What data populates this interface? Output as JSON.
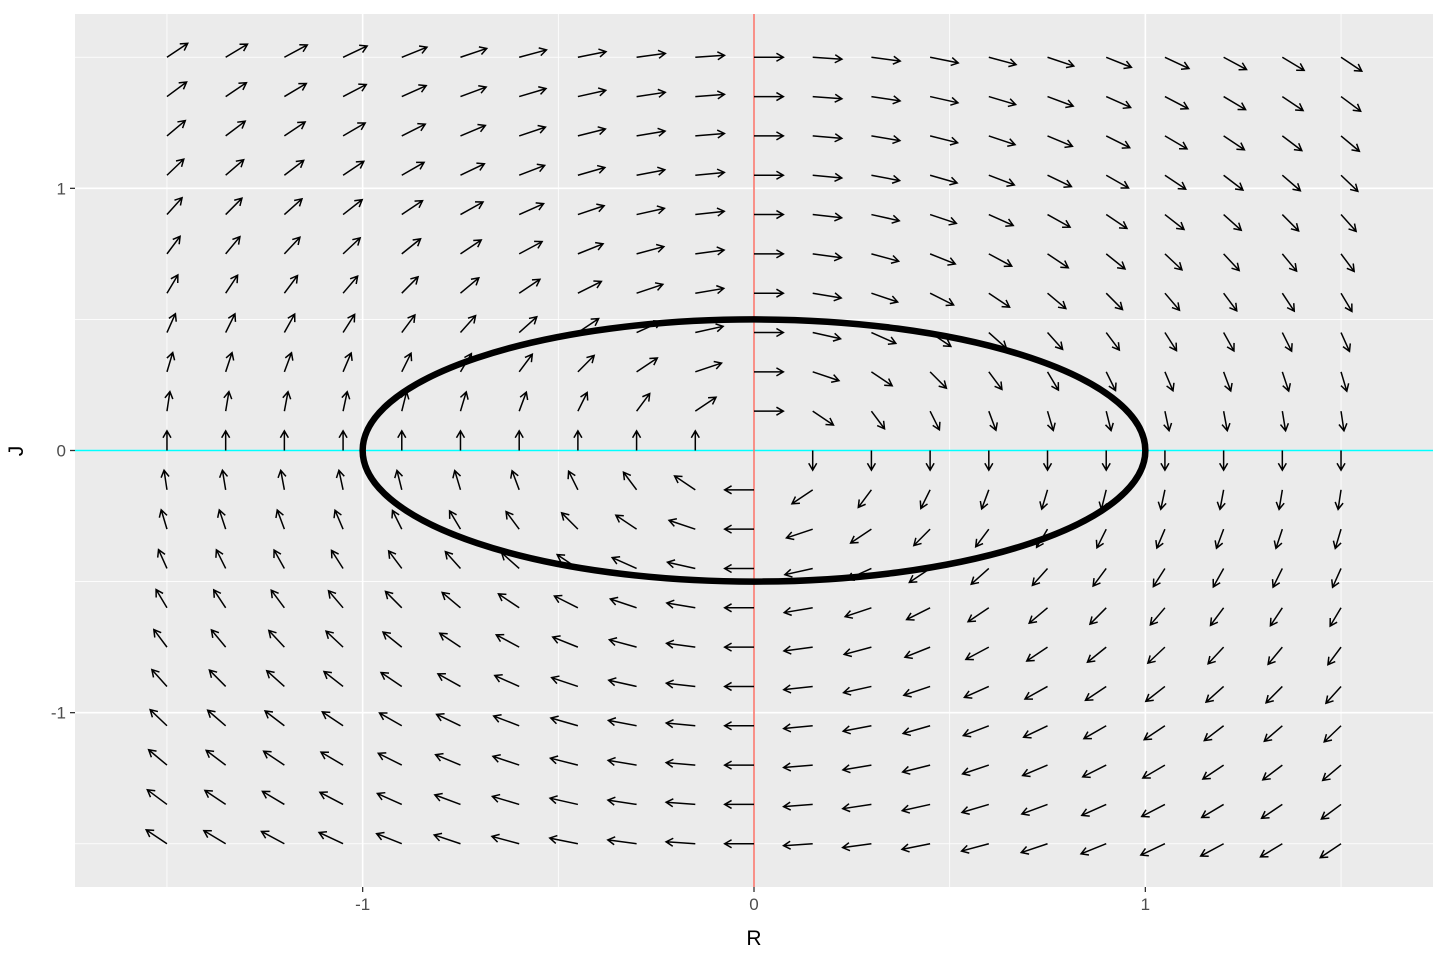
{
  "chart_data": {
    "type": "vector-field",
    "title": "",
    "xlabel": "R",
    "ylabel": "J",
    "xlim": [
      -1.735,
      1.735
    ],
    "ylim": [
      -1.665,
      1.665
    ],
    "x_ticks": [
      {
        "value": -1,
        "label": "-1"
      },
      {
        "value": 0,
        "label": "0"
      },
      {
        "value": 1,
        "label": "1"
      }
    ],
    "y_ticks": [
      {
        "value": -1,
        "label": "-1"
      },
      {
        "value": 0,
        "label": "0"
      },
      {
        "value": 1,
        "label": "1"
      }
    ],
    "grid": true,
    "vector_field": {
      "equations": {
        "dR": "J",
        "dJ": "-R"
      },
      "x_grid": {
        "start": -1.5,
        "end": 1.5,
        "count": 21
      },
      "y_grid": {
        "start": -1.5,
        "end": 1.5,
        "count": 21
      },
      "arrow_length_data": 0.075,
      "color": "#000000"
    },
    "nullclines": [
      {
        "name": "R-nullcline",
        "orientation": "horizontal",
        "value": 0,
        "color": "#00FFFF"
      },
      {
        "name": "J-nullcline",
        "orientation": "vertical",
        "value": 0,
        "color": "#F8766D"
      }
    ],
    "trajectory": {
      "shape": "ellipse",
      "center": [
        0,
        0
      ],
      "rx": 1.0,
      "ry": 0.5,
      "color": "#000000"
    },
    "colors": {
      "panel_background": "#EBEBEB",
      "major_grid": "#FFFFFF",
      "arrow": "#000000",
      "trajectory": "#000000"
    }
  }
}
